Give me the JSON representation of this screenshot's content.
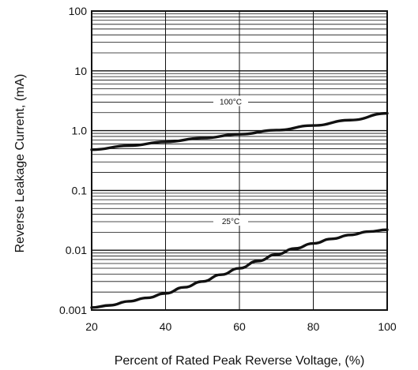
{
  "chart_data": {
    "type": "line",
    "title": "",
    "xlabel": "Percent of Rated Peak Reverse Voltage, (%)",
    "ylabel": "Reverse Leakage Current, (mA)",
    "xlim": [
      20,
      100
    ],
    "ylim": [
      0.001,
      100
    ],
    "yscale": "log",
    "grid": true,
    "x_ticks": [
      "20",
      "40",
      "60",
      "80",
      "100"
    ],
    "y_ticks": [
      "0.001",
      "0.01",
      "0.1",
      "1.0",
      "10",
      "100"
    ],
    "series": [
      {
        "name": "100°C",
        "x": [
          20,
          30,
          40,
          50,
          60,
          70,
          80,
          90,
          100
        ],
        "y": [
          0.48,
          0.56,
          0.65,
          0.75,
          0.87,
          1.02,
          1.22,
          1.5,
          1.95
        ]
      },
      {
        "name": "25°C",
        "x": [
          20,
          25,
          30,
          35,
          40,
          45,
          50,
          55,
          60,
          65,
          70,
          75,
          80,
          85,
          90,
          95,
          100
        ],
        "y": [
          0.0011,
          0.0012,
          0.0014,
          0.0016,
          0.0019,
          0.0024,
          0.003,
          0.0039,
          0.005,
          0.0066,
          0.0085,
          0.0107,
          0.013,
          0.0155,
          0.018,
          0.0205,
          0.022
        ]
      }
    ]
  }
}
